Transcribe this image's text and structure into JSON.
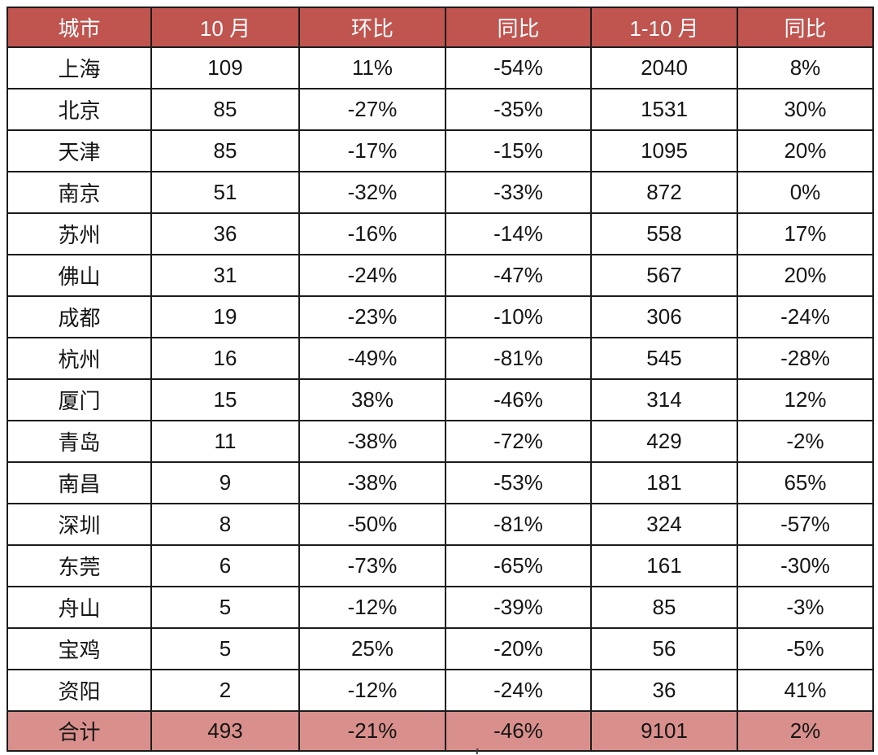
{
  "colors": {
    "header_bg": "#c0544f",
    "header_text": "#ffffff",
    "total_bg": "#d9908c",
    "body_text": "#151515",
    "border": "#1c1c1c",
    "page_bg": "#ffffff"
  },
  "table": {
    "headers": [
      "城市",
      "10 月",
      "环比",
      "同比",
      "1-10 月",
      "同比"
    ],
    "rows": [
      [
        "上海",
        "109",
        "11%",
        "-54%",
        "2040",
        "8%"
      ],
      [
        "北京",
        "85",
        "-27%",
        "-35%",
        "1531",
        "30%"
      ],
      [
        "天津",
        "85",
        "-17%",
        "-15%",
        "1095",
        "20%"
      ],
      [
        "南京",
        "51",
        "-32%",
        "-33%",
        "872",
        "0%"
      ],
      [
        "苏州",
        "36",
        "-16%",
        "-14%",
        "558",
        "17%"
      ],
      [
        "佛山",
        "31",
        "-24%",
        "-47%",
        "567",
        "20%"
      ],
      [
        "成都",
        "19",
        "-23%",
        "-10%",
        "306",
        "-24%"
      ],
      [
        "杭州",
        "16",
        "-49%",
        "-81%",
        "545",
        "-28%"
      ],
      [
        "厦门",
        "15",
        "38%",
        "-46%",
        "314",
        "12%"
      ],
      [
        "青岛",
        "11",
        "-38%",
        "-72%",
        "429",
        "-2%"
      ],
      [
        "南昌",
        "9",
        "-38%",
        "-53%",
        "181",
        "65%"
      ],
      [
        "深圳",
        "8",
        "-50%",
        "-81%",
        "324",
        "-57%"
      ],
      [
        "东莞",
        "6",
        "-73%",
        "-65%",
        "161",
        "-30%"
      ],
      [
        "舟山",
        "5",
        "-12%",
        "-39%",
        "85",
        "-3%"
      ],
      [
        "宝鸡",
        "5",
        "25%",
        "-20%",
        "56",
        "-5%"
      ],
      [
        "资阳",
        "2",
        "-12%",
        "-24%",
        "36",
        "41%"
      ]
    ],
    "total_row": [
      "合计",
      "493",
      "-21%",
      "-46%",
      "9101",
      "2%"
    ]
  },
  "chart_data": {
    "type": "table",
    "title": "",
    "columns": [
      "城市",
      "10 月",
      "环比",
      "同比",
      "1-10 月",
      "同比"
    ],
    "rows": [
      {
        "城市": "上海",
        "10月": 109,
        "环比": "11%",
        "同比": "-54%",
        "1-10月": 2040,
        "累计同比": "8%"
      },
      {
        "城市": "北京",
        "10月": 85,
        "环比": "-27%",
        "同比": "-35%",
        "1-10月": 1531,
        "累计同比": "30%"
      },
      {
        "城市": "天津",
        "10月": 85,
        "环比": "-17%",
        "同比": "-15%",
        "1-10月": 1095,
        "累计同比": "20%"
      },
      {
        "城市": "南京",
        "10月": 51,
        "环比": "-32%",
        "同比": "-33%",
        "1-10月": 872,
        "累计同比": "0%"
      },
      {
        "城市": "苏州",
        "10月": 36,
        "环比": "-16%",
        "同比": "-14%",
        "1-10月": 558,
        "累计同比": "17%"
      },
      {
        "城市": "佛山",
        "10月": 31,
        "环比": "-24%",
        "同比": "-47%",
        "1-10月": 567,
        "累计同比": "20%"
      },
      {
        "城市": "成都",
        "10月": 19,
        "环比": "-23%",
        "同比": "-10%",
        "1-10月": 306,
        "累计同比": "-24%"
      },
      {
        "城市": "杭州",
        "10月": 16,
        "环比": "-49%",
        "同比": "-81%",
        "1-10月": 545,
        "累计同比": "-28%"
      },
      {
        "城市": "厦门",
        "10月": 15,
        "环比": "38%",
        "同比": "-46%",
        "1-10月": 314,
        "累计同比": "12%"
      },
      {
        "城市": "青岛",
        "10月": 11,
        "环比": "-38%",
        "同比": "-72%",
        "1-10月": 429,
        "累计同比": "-2%"
      },
      {
        "城市": "南昌",
        "10月": 9,
        "环比": "-38%",
        "同比": "-53%",
        "1-10月": 181,
        "累计同比": "65%"
      },
      {
        "城市": "深圳",
        "10月": 8,
        "环比": "-50%",
        "同比": "-81%",
        "1-10月": 324,
        "累计同比": "-57%"
      },
      {
        "城市": "东莞",
        "10月": 6,
        "环比": "-73%",
        "同比": "-65%",
        "1-10月": 161,
        "累计同比": "-30%"
      },
      {
        "城市": "舟山",
        "10月": 5,
        "环比": "-12%",
        "同比": "-39%",
        "1-10月": 85,
        "累计同比": "-3%"
      },
      {
        "城市": "宝鸡",
        "10月": 5,
        "环比": "25%",
        "同比": "-20%",
        "1-10月": 56,
        "累计同比": "-5%"
      },
      {
        "城市": "资阳",
        "10月": 2,
        "环比": "-12%",
        "同比": "-24%",
        "1-10月": 36,
        "累计同比": "41%"
      },
      {
        "城市": "合计",
        "10月": 493,
        "环比": "-21%",
        "同比": "-46%",
        "1-10月": 9101,
        "累计同比": "2%"
      }
    ],
    "layout": {
      "header_fill": "#c0544f",
      "total_row_fill": "#d9908c",
      "grid": true
    }
  }
}
